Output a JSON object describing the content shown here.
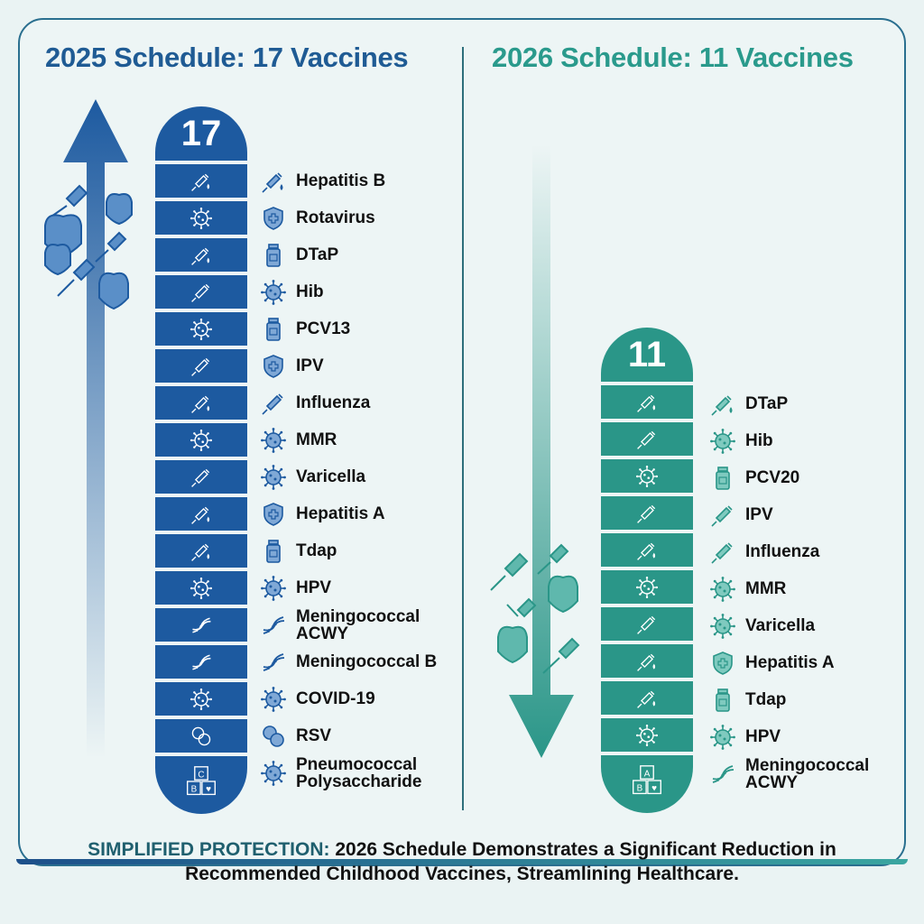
{
  "left": {
    "title": "2025 Schedule: 17 Vaccines",
    "count": "17",
    "accent": "#1d5aa0",
    "vaccines": [
      {
        "name": "Hepatitis B",
        "icon": "syringe-drop-icon"
      },
      {
        "name": "Rotavirus",
        "icon": "shield-cross-icon"
      },
      {
        "name": "DTaP",
        "icon": "vial-icon"
      },
      {
        "name": "Hib",
        "icon": "virus-icon"
      },
      {
        "name": "PCV13",
        "icon": "vial-icon"
      },
      {
        "name": "IPV",
        "icon": "shield-cross-icon"
      },
      {
        "name": "Influenza",
        "icon": "syringe-icon"
      },
      {
        "name": "MMR",
        "icon": "virus-icon"
      },
      {
        "name": "Varicella",
        "icon": "virus-icon"
      },
      {
        "name": "Hepatitis A",
        "icon": "shield-cross-icon"
      },
      {
        "name": "Tdap",
        "icon": "vial-icon"
      },
      {
        "name": "HPV",
        "icon": "virus-icon"
      },
      {
        "name": "Meningococcal ACWY",
        "icon": "dna-icon"
      },
      {
        "name": "Meningococcal B",
        "icon": "dna-icon"
      },
      {
        "name": "COVID-19",
        "icon": "virus-icon"
      },
      {
        "name": "RSV",
        "icon": "cells-icon"
      },
      {
        "name": "Pneumococcal Polysaccharide",
        "icon": "virus-icon"
      }
    ]
  },
  "right": {
    "title": "2026 Schedule: 11 Vaccines",
    "count": "11",
    "accent": "#2a9688",
    "vaccines": [
      {
        "name": "DTaP",
        "icon": "syringe-drop-icon"
      },
      {
        "name": "Hib",
        "icon": "virus-icon"
      },
      {
        "name": "PCV20",
        "icon": "vial-icon"
      },
      {
        "name": "IPV",
        "icon": "syringe-icon"
      },
      {
        "name": "Influenza",
        "icon": "syringe-icon"
      },
      {
        "name": "MMR",
        "icon": "virus-icon"
      },
      {
        "name": "Varicella",
        "icon": "virus-icon"
      },
      {
        "name": "Hepatitis A",
        "icon": "shield-cross-icon"
      },
      {
        "name": "Tdap",
        "icon": "vial-icon"
      },
      {
        "name": "HPV",
        "icon": "virus-icon"
      },
      {
        "name": "Meningococcal ACWY",
        "icon": "dna-icon"
      }
    ]
  },
  "blocks_labels": {
    "left": [
      "C",
      "B",
      "♥"
    ],
    "right": [
      "A",
      "B",
      "♥"
    ]
  },
  "footer": {
    "highlight": "SIMPLIFIED PROTECTION:",
    "text": " 2026 Schedule Demonstrates a Significant Reduction in Recommended Childhood Vaccines, Streamlining Healthcare."
  }
}
